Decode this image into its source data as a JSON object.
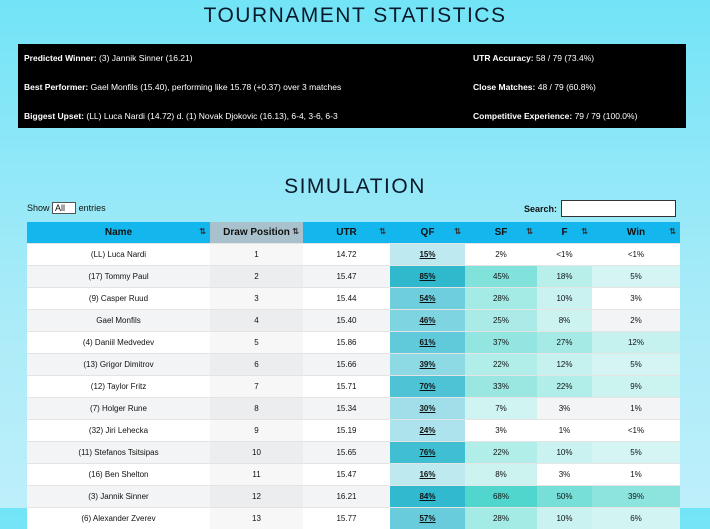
{
  "header": {
    "title": "TOURNAMENT STATISTICS"
  },
  "stats": {
    "left": [
      {
        "label": "Predicted Winner:",
        "value": "(3) Jannik Sinner (16.21)"
      },
      {
        "label": "Best Performer:",
        "value": "Gael Monfils (15.40), performing like 15.78 (+0.37) over 3 matches"
      },
      {
        "label": "Biggest Upset:",
        "value": "(LL) Luca Nardi (14.72) d. (1) Novak Djokovic (16.13), 6-4, 3-6, 6-3"
      }
    ],
    "right": [
      {
        "label": "UTR Accuracy:",
        "value": "58 / 79 (73.4%)"
      },
      {
        "label": "Close Matches:",
        "value": "48 / 79 (60.8%)"
      },
      {
        "label": "Competitive Experience:",
        "value": "79 / 79 (100.0%)"
      }
    ]
  },
  "simulation": {
    "title": "SIMULATION",
    "show_label": "Show",
    "show_option": "All",
    "entries_label": "entries",
    "search_label": "Search:",
    "table": {
      "columns": [
        "Name",
        "Draw Position",
        "UTR",
        "QF",
        "SF",
        "F",
        "Win"
      ],
      "rows": [
        [
          "(LL) Luca Nardi",
          "1",
          "14.72",
          "15%",
          "2%",
          "<1%",
          "<1%"
        ],
        [
          "(17) Tommy Paul",
          "2",
          "15.47",
          "85%",
          "45%",
          "18%",
          "5%"
        ],
        [
          "(9) Casper Ruud",
          "3",
          "15.44",
          "54%",
          "28%",
          "10%",
          "3%"
        ],
        [
          "Gael Monfils",
          "4",
          "15.40",
          "46%",
          "25%",
          "8%",
          "2%"
        ],
        [
          "(4) Daniil Medvedev",
          "5",
          "15.86",
          "61%",
          "37%",
          "27%",
          "12%"
        ],
        [
          "(13) Grigor Dimitrov",
          "6",
          "15.66",
          "39%",
          "22%",
          "12%",
          "5%"
        ],
        [
          "(12) Taylor Fritz",
          "7",
          "15.71",
          "70%",
          "33%",
          "22%",
          "9%"
        ],
        [
          "(7) Holger Rune",
          "8",
          "15.34",
          "30%",
          "7%",
          "3%",
          "1%"
        ],
        [
          "(32) Jiri Lehecka",
          "9",
          "15.19",
          "24%",
          "3%",
          "1%",
          "<1%"
        ],
        [
          "(11) Stefanos Tsitsipas",
          "10",
          "15.65",
          "76%",
          "22%",
          "10%",
          "5%"
        ],
        [
          "(16) Ben Shelton",
          "11",
          "15.47",
          "16%",
          "8%",
          "3%",
          "1%"
        ],
        [
          "(3) Jannik Sinner",
          "12",
          "16.21",
          "84%",
          "68%",
          "50%",
          "39%"
        ],
        [
          "(6) Alexander Zverev",
          "13",
          "15.77",
          "57%",
          "28%",
          "10%",
          "6%"
        ]
      ]
    }
  }
}
